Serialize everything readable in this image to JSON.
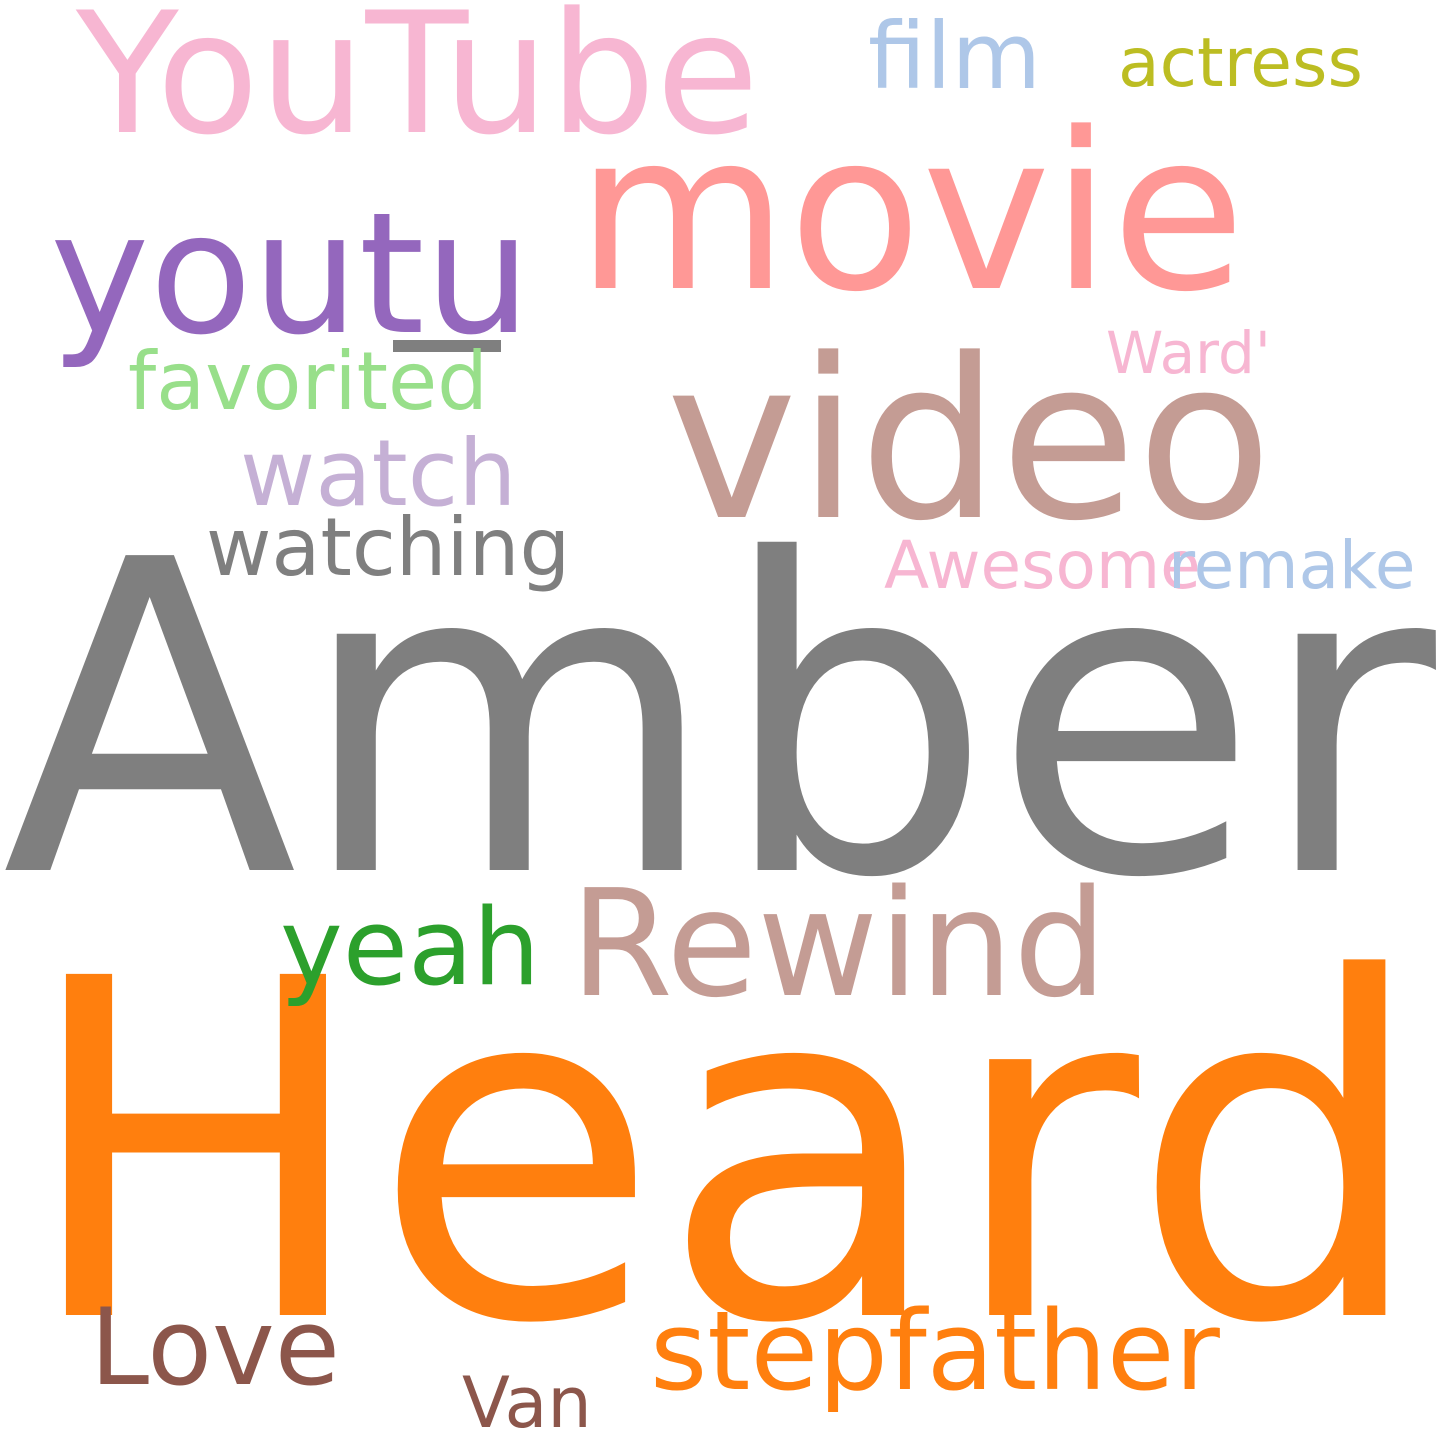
{
  "wordcloud": {
    "background": "#ffffff",
    "words": {
      "amber": {
        "text": "Amber",
        "color": "#7f7f7f"
      },
      "heard": {
        "text": "Heard",
        "color": "#ff7f0e"
      },
      "movie": {
        "text": "movie",
        "color": "#ff9896"
      },
      "video": {
        "text": "video",
        "color": "#c49c94"
      },
      "youtube": {
        "text": "YouTube",
        "color": "#f7b6d2"
      },
      "youtu": {
        "text": "youtu",
        "color": "#9467bd"
      },
      "rewind": {
        "text": "Rewind",
        "color": "#c49c94"
      },
      "stepfather": {
        "text": "stepfather",
        "color": "#ff7f0e"
      },
      "yeah": {
        "text": "yeah",
        "color": "#2ca02c"
      },
      "love": {
        "text": "Love",
        "color": "#8c564b"
      },
      "watch": {
        "text": "watch",
        "color": "#c5b0d5"
      },
      "film": {
        "text": "film",
        "color": "#aec7e8"
      },
      "favorited": {
        "text": "favorited",
        "color": "#98df8a"
      },
      "watching": {
        "text": "watching",
        "color": "#7f7f7f"
      },
      "actress": {
        "text": "actress",
        "color": "#bcbd22"
      },
      "awesome": {
        "text": "Awesome",
        "color": "#f7b6d2"
      },
      "remake": {
        "text": "remake",
        "color": "#aec7e8"
      },
      "ward": {
        "text": "Ward'",
        "color": "#f7b6d2"
      },
      "van": {
        "text": "Van",
        "color": "#8c564b"
      }
    },
    "decorations": {
      "youtu_underline": {
        "color": "#7f7f7f"
      }
    }
  }
}
